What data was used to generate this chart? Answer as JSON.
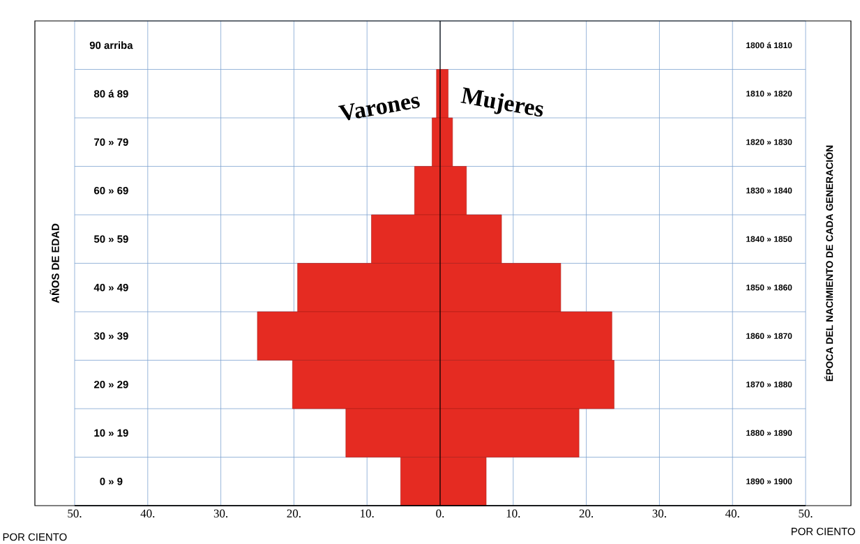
{
  "chart_data": {
    "type": "bar",
    "orientation": "horizontal",
    "stacked": true,
    "ylabel": "AÑOS DE EDAD",
    "y2label": "ÉPOCA DEL NACIMIENTO DE CADA GENERACIÓN",
    "xlabel": "POR CIENTO",
    "categories": [
      "90 arriba",
      "80 á 89",
      "70 » 79",
      "60 » 69",
      "50 » 59",
      "40 » 49",
      "30 » 39",
      "20 » 29",
      "10 » 19",
      "0 » 9"
    ],
    "series": [
      {
        "name": "Varones",
        "color": "#e52b22",
        "values": [
          null,
          -0.5,
          -1.1,
          -3.5,
          -9.4,
          -19.5,
          -25,
          -20.2,
          -12.9,
          -5.4
        ]
      },
      {
        "name": "Mujeres",
        "color": "#e52b22",
        "values": [
          null,
          1.1,
          1.7,
          3.6,
          8.4,
          16.5,
          23.5,
          23.8,
          19,
          6.3
        ]
      }
    ],
    "xlim": [
      -50,
      50
    ],
    "xticks": [
      {
        "value": -50,
        "label": "50."
      },
      {
        "value": -40,
        "label": "40."
      },
      {
        "value": -30,
        "label": "30."
      },
      {
        "value": -20,
        "label": "20."
      },
      {
        "value": -10,
        "label": "10."
      },
      {
        "value": 0,
        "label": "0."
      },
      {
        "value": 10,
        "label": "10."
      },
      {
        "value": 20,
        "label": "20."
      },
      {
        "value": 30,
        "label": "30."
      },
      {
        "value": 40,
        "label": "40."
      },
      {
        "value": 50,
        "label": "50."
      }
    ],
    "grid": true,
    "ref_lines": [
      {
        "axis": "x",
        "value": 0,
        "color": "#000000"
      }
    ],
    "annotations": [
      "1800 á 1810",
      "1810 » 1820",
      "1820 » 1830",
      "1830 » 1840",
      "1840 » 1850",
      "1850 » 1860",
      "1860 » 1870",
      "1870 » 1880",
      "1880 » 1890",
      "1890 » 1900"
    ]
  }
}
